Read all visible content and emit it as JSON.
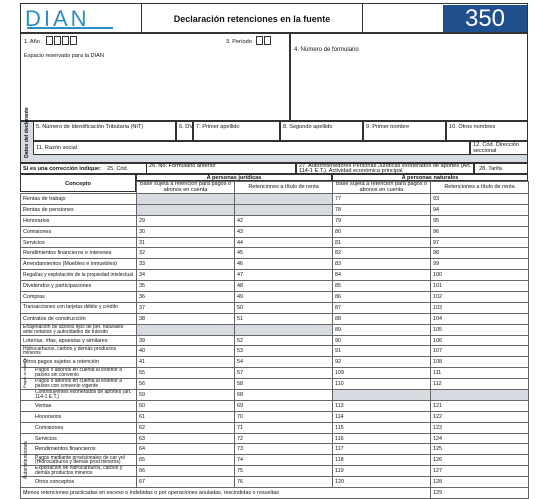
{
  "header": {
    "logo": "DIAN",
    "title": "Declaración retenciones en la fuente",
    "form_number": "350"
  },
  "top": {
    "year_label": "1. Año",
    "period_label": "3. Período",
    "reserved": "Espacio reservado para la DIAN",
    "form_number_label": "4. Número de formulario"
  },
  "declarant": {
    "section": "Datos del declarante",
    "nit": "5. Número de Identificación Tributaria (NIT)",
    "dv": "6. DV",
    "surname1": "7. Primer apellido",
    "surname2": "8. Segundo apellido",
    "name1": "9. Primer nombre",
    "other_names": "10. Otros nombres",
    "razon": "11. Razón social",
    "dir_code": "12. Cód. Dirección seccional"
  },
  "correction": {
    "label": "Si es una corrección indique:",
    "cod": "25. Cód.",
    "prev_form": "26. No. Formulario anterior",
    "self": "27. Autorretenedores Personas Jurídicas exonerados de aportes (Art. 114-1 E.T.). Actividad económica principal",
    "tarifa": "28. Tarifa"
  },
  "table": {
    "concept": "Concepto",
    "pj": "A personas jurídicas",
    "pn": "A personas naturales",
    "base": "Base sujeta a retención para pagos o abonos en cuenta",
    "ret": "Retenciones a título de renta",
    "pagos_exterior": "Pagos al exterior",
    "autorretenciones": "Autorretenciones",
    "rows": [
      {
        "c": "Rentas de trabajo",
        "a": "",
        "b": "",
        "d": "77",
        "e": "93"
      },
      {
        "c": "Rentas de pensiones",
        "a": "",
        "b": "",
        "d": "78",
        "e": "94"
      },
      {
        "c": "Honorarios",
        "a": "29",
        "b": "42",
        "d": "79",
        "e": "95"
      },
      {
        "c": "Comisiones",
        "a": "30",
        "b": "43",
        "d": "80",
        "e": "96"
      },
      {
        "c": "Servicios",
        "a": "31",
        "b": "44",
        "d": "81",
        "e": "97"
      },
      {
        "c": "Rendimientos financieros e intereses",
        "a": "32",
        "b": "45",
        "d": "82",
        "e": "98"
      },
      {
        "c": "Arrendamientos (Muebles e inmuebles)",
        "a": "33",
        "b": "46",
        "d": "83",
        "e": "99"
      },
      {
        "c": "Regalías y explotación de la propiedad intelectual",
        "a": "34",
        "b": "47",
        "d": "84",
        "e": "100"
      },
      {
        "c": "Dividendos y participaciones",
        "a": "35",
        "b": "48",
        "d": "85",
        "e": "101"
      },
      {
        "c": "Compras",
        "a": "36",
        "b": "49",
        "d": "86",
        "e": "102"
      },
      {
        "c": "Transacciones con tarjetas débito y crédito",
        "a": "37",
        "b": "50",
        "d": "87",
        "e": "103"
      },
      {
        "c": "Contratos de construcción",
        "a": "38",
        "b": "51",
        "d": "88",
        "e": "104"
      },
      {
        "c": "Enajenación de activos fijos de per. naturales ante notarios y autoridades de tránsito",
        "a": "",
        "b": "",
        "d": "89",
        "e": "105"
      },
      {
        "c": "Loterías, rifas, apuestas y similares",
        "a": "39",
        "b": "52",
        "d": "90",
        "e": "106"
      },
      {
        "c": "Hidrocarburos, carbón y demás productos mineros",
        "a": "40",
        "b": "53",
        "d": "91",
        "e": "107"
      },
      {
        "c": "Otros pagos sujetos a retención",
        "a": "41",
        "b": "54",
        "d": "92",
        "e": "108"
      }
    ],
    "exterior": [
      {
        "c": "Pagos o abonos en cuenta al exterior a países sin convenio",
        "a": "55",
        "b": "57",
        "d": "109",
        "e": "111"
      },
      {
        "c": "Pagos o abonos en cuenta al exterior a países con convenio vigente",
        "a": "56",
        "b": "58",
        "d": "110",
        "e": "112"
      }
    ],
    "auto": [
      {
        "c": "Contribuyentes exonerados de aportes (art. 114-1 E.T.)",
        "a": "59",
        "b": "68",
        "d": "",
        "e": ""
      },
      {
        "c": "Ventas",
        "a": "60",
        "b": "69",
        "d": "113",
        "e": "121"
      },
      {
        "c": "Honorarios",
        "a": "61",
        "b": "70",
        "d": "114",
        "e": "122"
      },
      {
        "c": "Comisiones",
        "a": "62",
        "b": "71",
        "d": "115",
        "e": "123"
      },
      {
        "c": "Servicios",
        "a": "63",
        "b": "72",
        "d": "116",
        "e": "124"
      },
      {
        "c": "Rendimientos financieros",
        "a": "64",
        "b": "73",
        "d": "117",
        "e": "125"
      },
      {
        "c": "Pagos mediante provisionales de car vol (Hidrocarburos y demás prod mineros)",
        "a": "65",
        "b": "74",
        "d": "118",
        "e": "126"
      },
      {
        "c": "Exportación de hidrocarburos, carbón y demás productos mineros",
        "a": "66",
        "b": "75",
        "d": "119",
        "e": "127"
      },
      {
        "c": "Otros conceptos",
        "a": "67",
        "b": "76",
        "d": "120",
        "e": "128"
      }
    ],
    "last": {
      "c": "Menos retenciones practicadas en exceso o indebidas o por operaciones anuladas, rescindidas o resueltas",
      "e": "129"
    }
  }
}
